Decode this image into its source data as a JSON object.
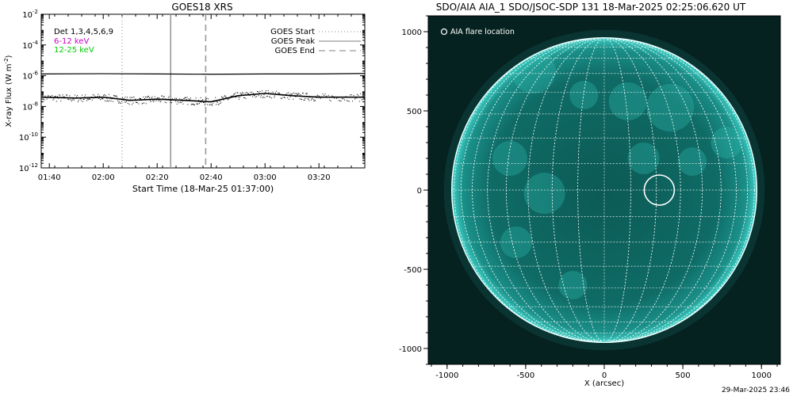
{
  "chart_data": [
    {
      "type": "line",
      "title": "GOES18 XRS",
      "xlabel": "Start Time (18-Mar-25 01:37:00)",
      "ylabel": "X-ray Flux (W m^-2)",
      "yscale": "log",
      "ylim": [
        1e-12,
        0.01
      ],
      "y_ticks": [
        "10^-12",
        "10^-10",
        "10^-8",
        "10^-6",
        "10^-4",
        "10^-2"
      ],
      "xlim": [
        "01:37",
        "03:37"
      ],
      "x_ticks": [
        "01:40",
        "02:00",
        "02:20",
        "02:40",
        "03:00",
        "03:20"
      ],
      "detectors_label": "Det 1,3,4,5,6,9",
      "energy_bands": [
        "6-12 keV",
        "12-25 keV"
      ],
      "band_colors": [
        "#cc00cc",
        "#00cc00"
      ],
      "legend": [
        {
          "label": "GOES Start",
          "style": "dotted",
          "time": "02:07"
        },
        {
          "label": "GOES Peak",
          "style": "solid",
          "time": "02:25"
        },
        {
          "label": "GOES End",
          "style": "dashed",
          "time": "02:38"
        }
      ],
      "legend_position": "top-right",
      "series": [
        {
          "values_x": [
            "01:37",
            "02:00",
            "02:20",
            "02:40",
            "03:00",
            "03:20",
            "03:37"
          ],
          "values_y": [
            1.3e-06,
            1.35e-06,
            1.3e-06,
            1.25e-06,
            1.3e-06,
            1.3e-06,
            1.4e-06
          ]
        },
        {
          "values_x": [
            "01:37",
            "01:50",
            "02:00",
            "02:10",
            "02:20",
            "02:30",
            "02:40",
            "02:50",
            "03:00",
            "03:10",
            "03:20",
            "03:37"
          ],
          "values_y": [
            4e-08,
            3.5e-08,
            4e-08,
            2.5e-08,
            3e-08,
            2.5e-08,
            2e-08,
            5e-08,
            7e-08,
            5e-08,
            4e-08,
            4e-08
          ]
        }
      ]
    },
    {
      "type": "scatter",
      "title": "SDO/AIA AIA_1 SDO/JSOC-SDP 131 18-Mar-2025 02:25:06.620 UT",
      "xlabel": "X (arcsec)",
      "ylabel": "",
      "xlim": [
        -1120,
        1120
      ],
      "ylim": [
        -1100,
        1100
      ],
      "x_ticks": [
        -1000,
        -500,
        0,
        500,
        1000
      ],
      "y_ticks": [
        -1000,
        -500,
        0,
        500,
        1000
      ],
      "legend": [
        {
          "label": "AIA flare location",
          "symbol": "circle"
        }
      ],
      "legend_position": "top-left",
      "solar_radius_arcsec": 970,
      "flare_location": {
        "x": 350,
        "y": 0
      },
      "disk_color": "#0f6b66"
    }
  ],
  "footer": {
    "timestamp": "29-Mar-2025 23:46"
  }
}
